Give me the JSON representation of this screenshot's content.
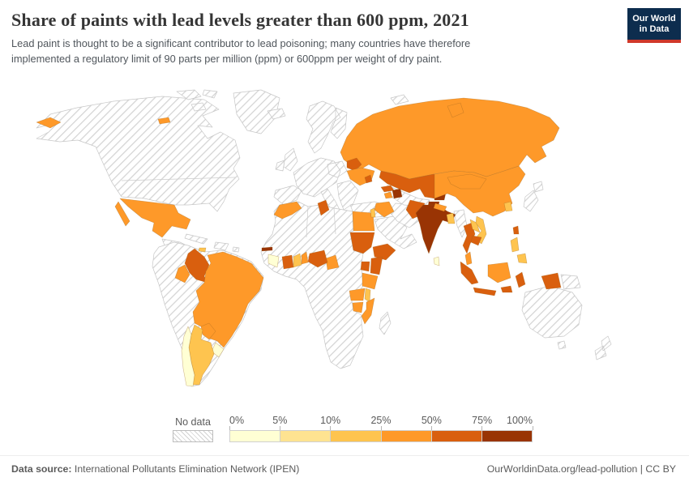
{
  "header": {
    "title": "Share of paints with lead levels greater than 600 ppm, 2021",
    "subtitle_line1": "Lead paint is thought to be a significant contributor to lead poisoning; many countries have therefore",
    "subtitle_line2": "implemented a regulatory limit of 90 parts per million (ppm) or 600ppm per weight of dry paint.",
    "logo": {
      "line1": "Our World",
      "line2": "in Data",
      "bg_color": "#0d2d4e",
      "accent_color": "#d0382a"
    }
  },
  "legend": {
    "no_data_label": "No data",
    "tick_labels": [
      "0%",
      "5%",
      "10%",
      "25%",
      "50%",
      "75%",
      "100%"
    ],
    "bin_colors": [
      "#FFFFD4",
      "#FEE391",
      "#FEC44F",
      "#FE9929",
      "#D95F0E",
      "#993404"
    ]
  },
  "footer": {
    "source_label": "Data source:",
    "source_value": " International Pollutants Elimination Network (IPEN)",
    "attribution": "OurWorldinData.org/lead-pollution | CC BY"
  },
  "chart_data": {
    "type": "choropleth-map",
    "title": "Share of paints with lead levels greater than 600 ppm",
    "year": 2021,
    "unit": "% of analyzed paints with lead content above 600 ppm",
    "bins": [
      {
        "range": "0-5%",
        "color": "#FFFFD4"
      },
      {
        "range": "5-10%",
        "color": "#FEE391"
      },
      {
        "range": "10-25%",
        "color": "#FEC44F"
      },
      {
        "range": "25-50%",
        "color": "#FE9929"
      },
      {
        "range": "50-75%",
        "color": "#D95F0E"
      },
      {
        "range": "75-100%",
        "color": "#993404"
      }
    ],
    "no_data_style": "gray diagonal hatching",
    "regions": {
      "mexico": {
        "name": "Mexico",
        "value": "25-50%",
        "color": "#FE9929"
      },
      "jamaica": {
        "name": "Jamaica",
        "value": "10-25%",
        "color": "#FEC44F"
      },
      "colombia": {
        "name": "Colombia",
        "value": "50-75%",
        "color": "#D95F0E"
      },
      "ecuador": {
        "name": "Ecuador",
        "value": "25-50%",
        "color": "#FE9929"
      },
      "brazil": {
        "name": "Brazil",
        "value": "25-50%",
        "color": "#FE9929"
      },
      "paraguay": {
        "name": "Paraguay",
        "value": "25-50%",
        "color": "#FE9929"
      },
      "uruguay": {
        "name": "Uruguay",
        "value": "0-5%",
        "color": "#FFFFD4"
      },
      "argentina": {
        "name": "Argentina",
        "value": "10-25%",
        "color": "#FEC44F"
      },
      "chile": {
        "name": "Chile",
        "value": "0-5%",
        "color": "#FFFFD4"
      },
      "russia": {
        "name": "Russia",
        "value": "25-50%",
        "color": "#FE9929"
      },
      "belarus": {
        "name": "Belarus",
        "value": "50-75%",
        "color": "#D95F0E"
      },
      "ukraine": {
        "name": "Ukraine",
        "value": "25-50%",
        "color": "#FE9929"
      },
      "moldova": {
        "name": "Moldova",
        "value": "50-75%",
        "color": "#D95F0E"
      },
      "georgia": {
        "name": "Georgia",
        "value": "50-75%",
        "color": "#D95F0E"
      },
      "armenia": {
        "name": "Armenia",
        "value": "25-50%",
        "color": "#FE9929"
      },
      "azerbaijan": {
        "name": "Azerbaijan",
        "value": "75-100%",
        "color": "#993404"
      },
      "morocco": {
        "name": "Morocco",
        "value": "25-50%",
        "color": "#FE9929"
      },
      "tunisia": {
        "name": "Tunisia",
        "value": "50-75%",
        "color": "#D95F0E"
      },
      "egypt": {
        "name": "Egypt",
        "value": "25-50%",
        "color": "#FE9929"
      },
      "sudan": {
        "name": "Sudan",
        "value": "50-75%",
        "color": "#D95F0E"
      },
      "ethiopia": {
        "name": "Ethiopia",
        "value": "50-75%",
        "color": "#D95F0E"
      },
      "kenya": {
        "name": "Kenya",
        "value": "50-75%",
        "color": "#D95F0E"
      },
      "uganda": {
        "name": "Uganda",
        "value": "50-75%",
        "color": "#D95F0E"
      },
      "tanzania": {
        "name": "Tanzania",
        "value": "25-50%",
        "color": "#FE9929"
      },
      "zambia": {
        "name": "Zambia",
        "value": "25-50%",
        "color": "#FE9929"
      },
      "zimbabwe": {
        "name": "Zimbabwe",
        "value": "25-50%",
        "color": "#FE9929"
      },
      "malawi": {
        "name": "Malawi",
        "value": "10-25%",
        "color": "#FEC44F"
      },
      "mozambique": {
        "name": "Mozambique",
        "value": "25-50%",
        "color": "#FE9929"
      },
      "cameroon": {
        "name": "Cameroon",
        "value": "25-50%",
        "color": "#FE9929"
      },
      "nigeria": {
        "name": "Nigeria",
        "value": "50-75%",
        "color": "#D95F0E"
      },
      "benin": {
        "name": "Benin",
        "value": "25-50%",
        "color": "#FE9929"
      },
      "ghana": {
        "name": "Ghana",
        "value": "10-25%",
        "color": "#FEC44F"
      },
      "cote-divoire": {
        "name": "Cote d'Ivoire",
        "value": "50-75%",
        "color": "#D95F0E"
      },
      "sierra-leone": {
        "name": "Sierra Leone",
        "value": "0-5%",
        "color": "#FFFFD4"
      },
      "gambia": {
        "name": "Gambia",
        "value": "75-100%",
        "color": "#993404"
      },
      "iraq": {
        "name": "Iraq",
        "value": "25-50%",
        "color": "#FE9929"
      },
      "israel": {
        "name": "Israel",
        "value": "10-25%",
        "color": "#FEC44F"
      },
      "kazakhstan": {
        "name": "Kazakhstan",
        "value": "50-75%",
        "color": "#D95F0E"
      },
      "kyrgyzstan": {
        "name": "Kyrgyzstan",
        "value": "75-100%",
        "color": "#993404"
      },
      "tajikistan": {
        "name": "Tajikistan",
        "value": "75-100%",
        "color": "#993404"
      },
      "pakistan": {
        "name": "Pakistan",
        "value": "50-75%",
        "color": "#D95F0E"
      },
      "india": {
        "name": "India",
        "value": "75-100%",
        "color": "#993404"
      },
      "nepal": {
        "name": "Nepal",
        "value": "25-50%",
        "color": "#FE9929"
      },
      "bangladesh": {
        "name": "Bangladesh",
        "value": "10-25%",
        "color": "#FEC44F"
      },
      "sri-lanka": {
        "name": "Sri Lanka",
        "value": "0-5%",
        "color": "#FFFFD4"
      },
      "china": {
        "name": "China",
        "value": "25-50%",
        "color": "#FE9929"
      },
      "mongolia": {
        "name": "Mongolia",
        "value": "25-50%",
        "color": "#FE9929"
      },
      "south-korea": {
        "name": "South Korea",
        "value": "10-25%",
        "color": "#FEC44F"
      },
      "taiwan": {
        "name": "Taiwan",
        "value": "50-75%",
        "color": "#D95F0E"
      },
      "thailand": {
        "name": "Thailand",
        "value": "50-75%",
        "color": "#D95F0E"
      },
      "laos": {
        "name": "Laos",
        "value": "10-25%",
        "color": "#FEC44F"
      },
      "cambodia": {
        "name": "Cambodia",
        "value": "50-75%",
        "color": "#D95F0E"
      },
      "vietnam": {
        "name": "Vietnam",
        "value": "10-25%",
        "color": "#FEC44F"
      },
      "malaysia": {
        "name": "Malaysia",
        "value": "25-50%",
        "color": "#FE9929"
      },
      "indonesia": {
        "name": "Indonesia",
        "value": "50-75%",
        "color": "#D95F0E"
      },
      "philippines": {
        "name": "Philippines",
        "value": "10-25%",
        "color": "#FEC44F"
      }
    },
    "no_data_regions": [
      "United States",
      "Canada",
      "Greenland",
      "Guatemala",
      "Honduras",
      "Nicaragua",
      "Cuba",
      "Haiti",
      "Dominican Republic",
      "Venezuela",
      "Peru",
      "Bolivia",
      "Guyana",
      "Suriname",
      "Iceland",
      "United Kingdom",
      "Ireland",
      "France",
      "Spain",
      "Portugal",
      "Germany",
      "Poland",
      "Italy",
      "Norway",
      "Sweden",
      "Finland",
      "Romania",
      "Greece",
      "Turkey",
      "Syria",
      "Saudi Arabia",
      "Yemen",
      "Oman",
      "Iran",
      "Afghanistan",
      "Uzbekistan",
      "Turkmenistan",
      "Algeria",
      "Libya",
      "Mauritania",
      "Mali",
      "Niger",
      "Chad",
      "Senegal",
      "Guinea",
      "Burkina Faso",
      "Central African Republic",
      "South Sudan",
      "Somalia",
      "Democratic Republic of Congo",
      "Angola",
      "Namibia",
      "Botswana",
      "South Africa",
      "Madagascar",
      "Myanmar",
      "Japan",
      "North Korea",
      "Papua New Guinea",
      "Australia",
      "New Zealand"
    ]
  }
}
